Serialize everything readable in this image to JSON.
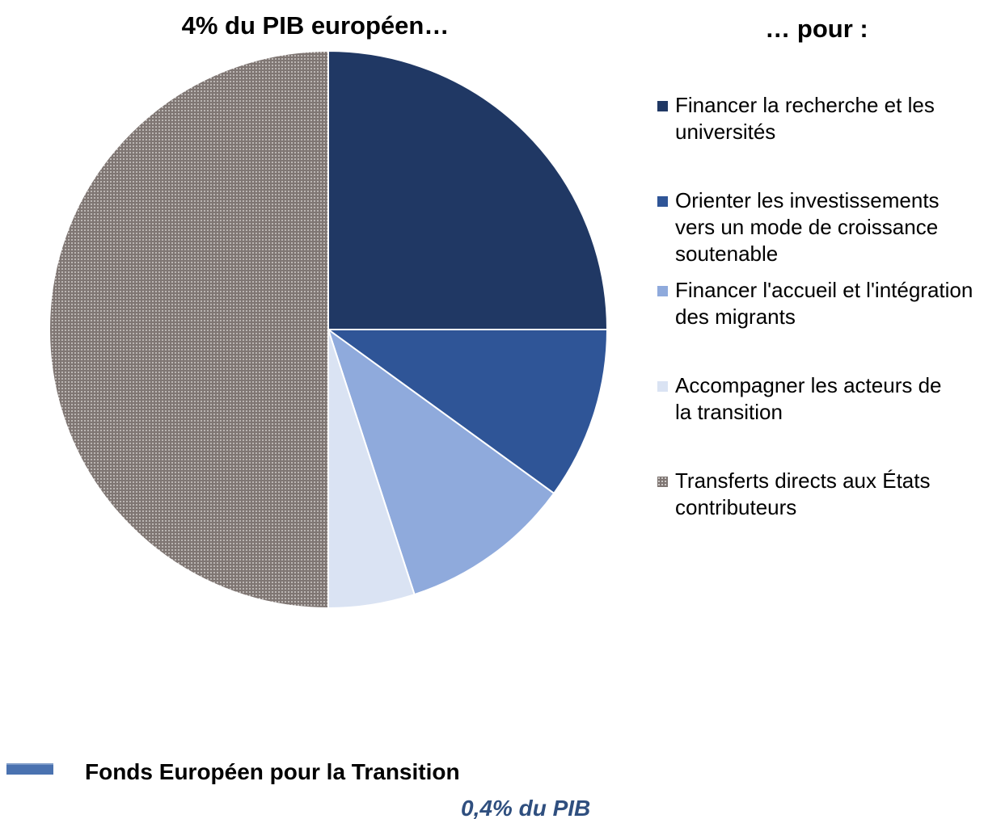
{
  "chart_data": {
    "type": "pie",
    "title": "4% du PIB européen…",
    "legend_title": "… pour :",
    "categories": [
      "Financer la recherche et les universités",
      "Orienter les investissements vers un mode de croissance soutenable",
      "Financer l'accueil et l'intégration des migrants",
      "Accompagner les acteurs de la transition",
      "Transferts directs aux États contributeurs"
    ],
    "values": [
      25,
      10,
      10,
      5,
      50
    ],
    "colors": [
      "#203864",
      "#2f5597",
      "#8faadc",
      "#dae3f3",
      "#7f7673"
    ],
    "patterned": [
      false,
      false,
      false,
      false,
      true
    ],
    "legend": "right",
    "annotations": [
      "Fonds Européen pour la Transition",
      "0,4% du PIB"
    ]
  }
}
